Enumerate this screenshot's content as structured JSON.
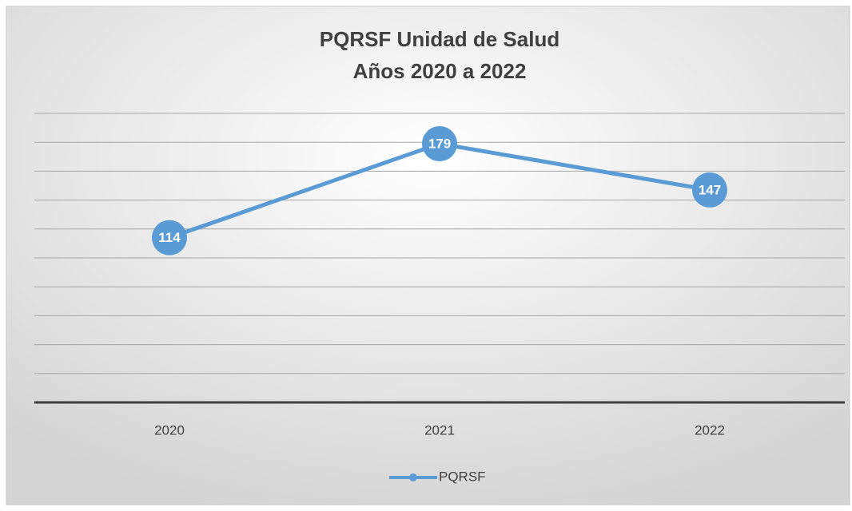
{
  "chart_data": {
    "type": "line",
    "title": [
      "PQRSF Unidad de Salud",
      "Años 2020 a 2022"
    ],
    "categories": [
      "2020",
      "2021",
      "2022"
    ],
    "series": [
      {
        "name": "PQRSF",
        "color": "#5b9bd5",
        "values": [
          114,
          179,
          147
        ]
      }
    ],
    "ylim": [
      0,
      200
    ],
    "yticks": [
      0,
      20,
      40,
      60,
      80,
      100,
      120,
      140,
      160,
      180,
      200
    ],
    "grid": true,
    "legend": "bottom"
  }
}
